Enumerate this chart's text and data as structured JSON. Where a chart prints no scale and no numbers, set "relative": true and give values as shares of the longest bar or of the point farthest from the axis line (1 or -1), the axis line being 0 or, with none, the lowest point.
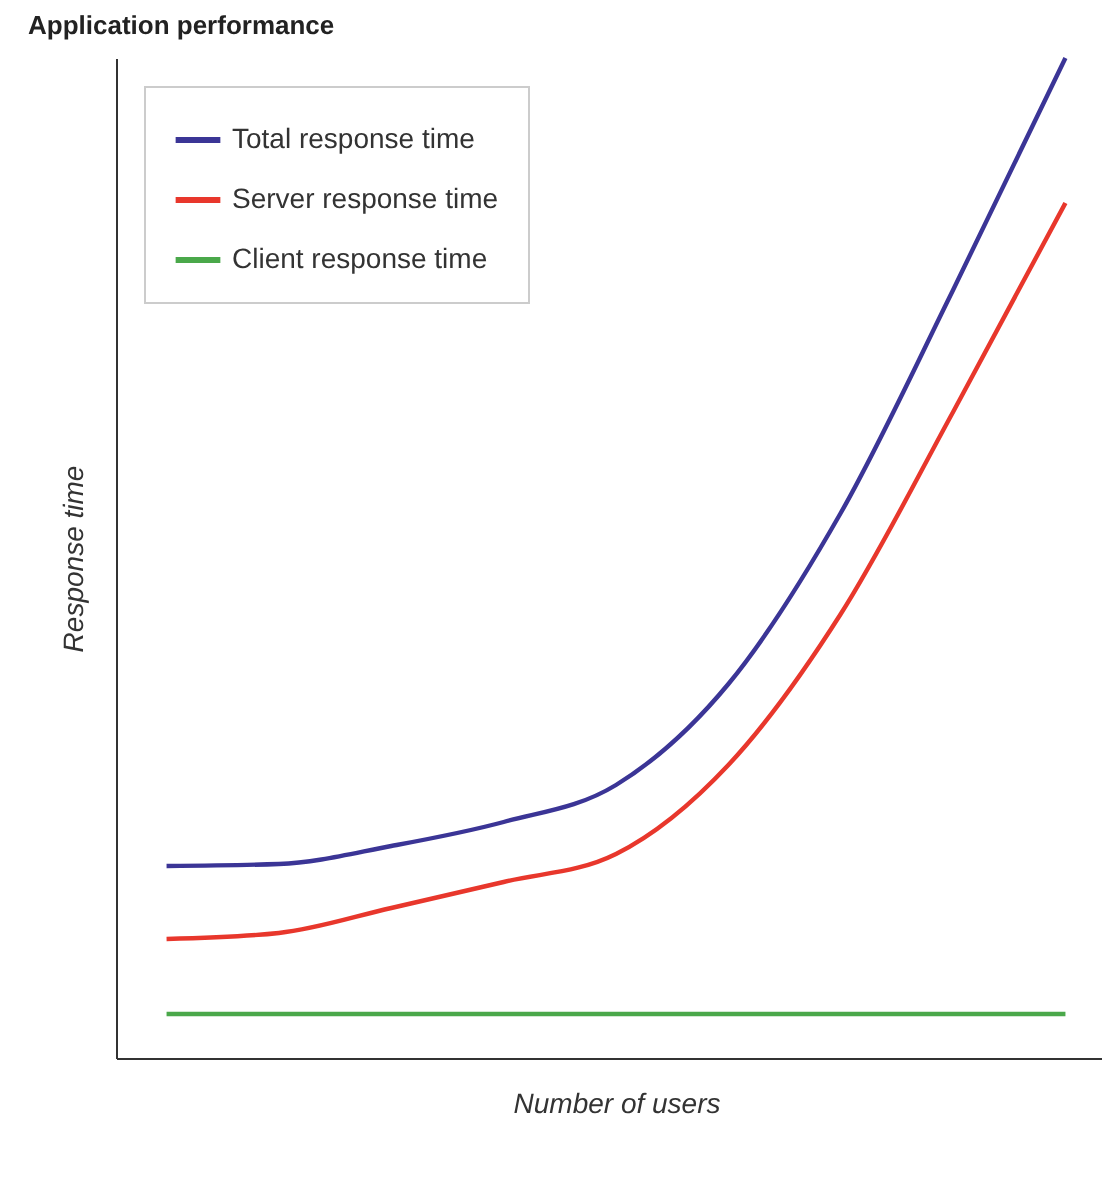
{
  "chart_data": {
    "type": "line",
    "title": "Application performance",
    "xlabel": "Number of users",
    "ylabel": "Response time",
    "relative": true,
    "legend": "top left",
    "grid": false,
    "marker": "none",
    "line_style": "solid",
    "categories": [
      null,
      null,
      null,
      null,
      null,
      null,
      null,
      null,
      null
    ],
    "series": [
      {
        "name": "Total response time",
        "color": "#3b3596",
        "values": [
          0.192,
          0.194,
          0.212,
          0.236,
          0.273,
          0.374,
          0.545,
          0.768,
          1
        ]
      },
      {
        "name": "Server response time",
        "color": "#e8372c",
        "values": [
          0.119,
          0.125,
          0.15,
          0.176,
          0.204,
          0.293,
          0.444,
          0.646,
          0.855
        ]
      },
      {
        "name": "Client response time",
        "color": "#4aa84a",
        "values": [
          0.044,
          0.044,
          0.044,
          0.044,
          0.044,
          0.044,
          0.044,
          0.044,
          0.044
        ]
      }
    ]
  }
}
